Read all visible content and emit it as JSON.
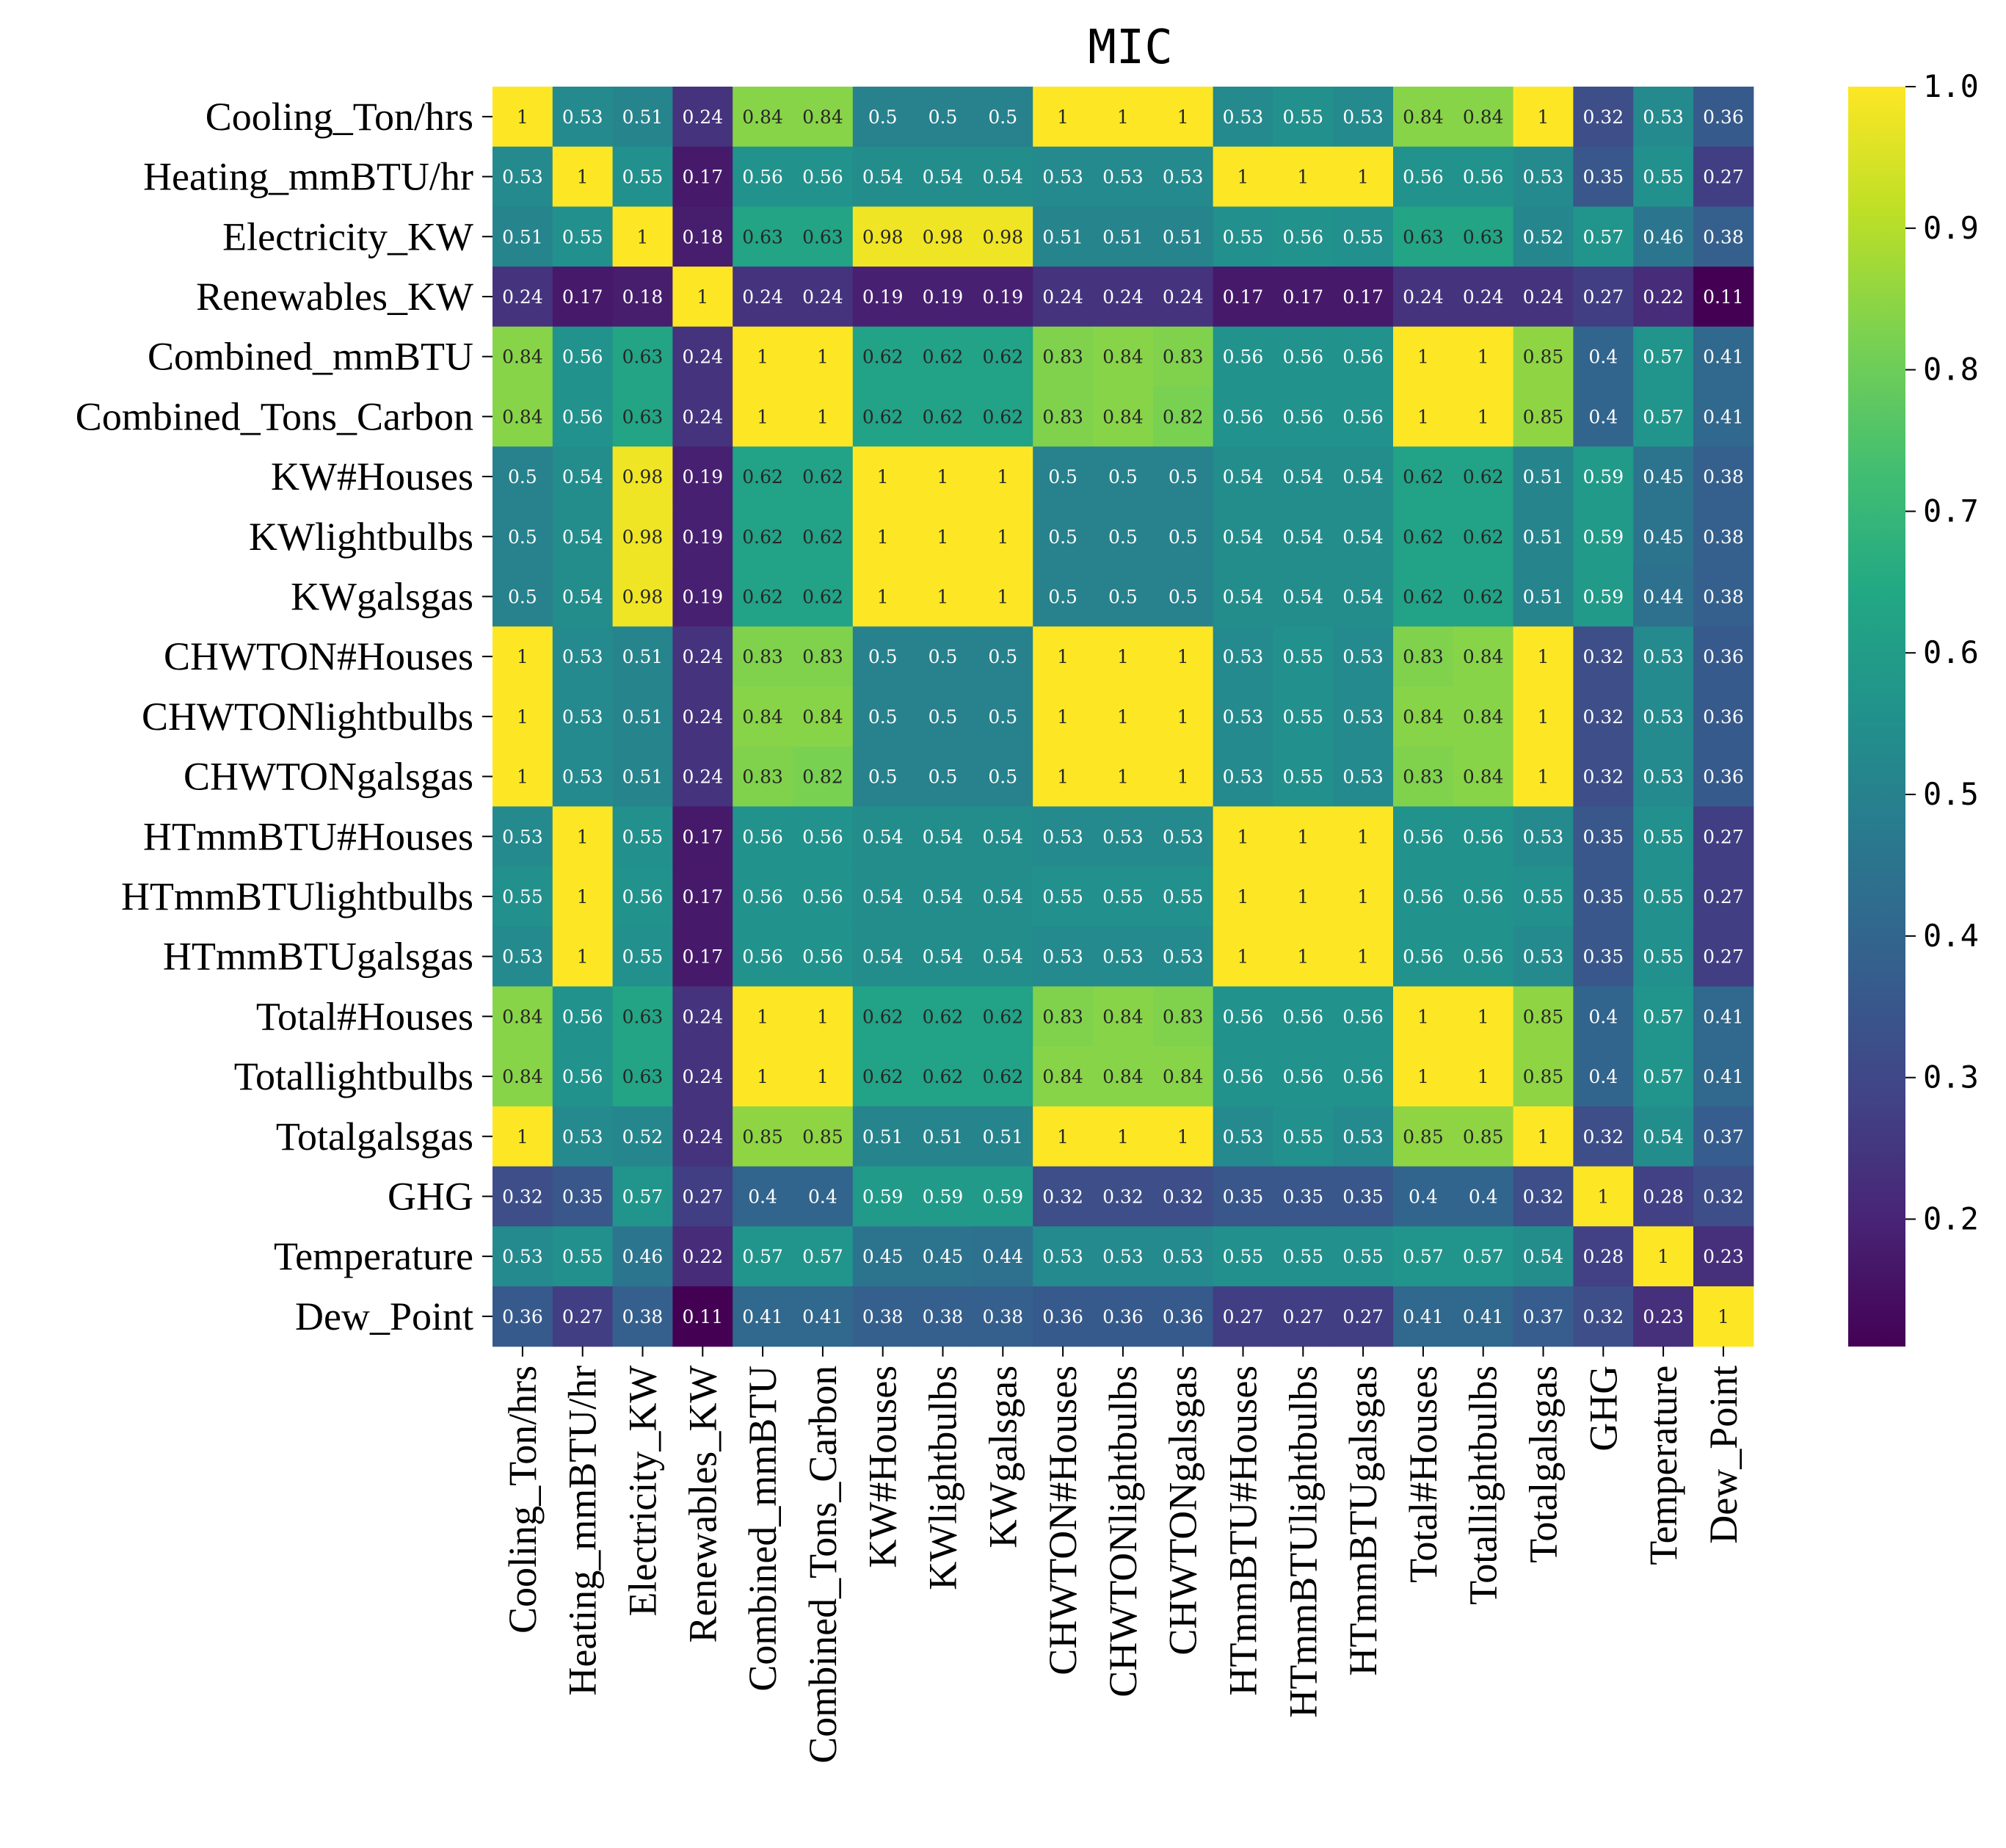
{
  "chart_data": {
    "type": "heatmap",
    "title": "MIC",
    "labels": [
      "Cooling_Ton/hrs",
      "Heating_mmBTU/hr",
      "Electricity_KW",
      "Renewables_KW",
      "Combined_mmBTU",
      "Combined_Tons_Carbon",
      "KW#Houses",
      "KWlightbulbs",
      "KWgalsgas",
      "CHWTON#Houses",
      "CHWTONlightbulbs",
      "CHWTONgalsgas",
      "HTmmBTU#Houses",
      "HTmmBTUlightbulbs",
      "HTmmBTUgalsgas",
      "Total#Houses",
      "Totallightbulbs",
      "Totalgalsgas",
      "GHG",
      "Temperature",
      "Dew_Point"
    ],
    "values": [
      [
        1,
        0.53,
        0.51,
        0.24,
        0.84,
        0.84,
        0.5,
        0.5,
        0.5,
        1,
        1,
        1,
        0.53,
        0.55,
        0.53,
        0.84,
        0.84,
        1,
        0.32,
        0.53,
        0.36
      ],
      [
        0.53,
        1,
        0.55,
        0.17,
        0.56,
        0.56,
        0.54,
        0.54,
        0.54,
        0.53,
        0.53,
        0.53,
        1,
        1,
        1,
        0.56,
        0.56,
        0.53,
        0.35,
        0.55,
        0.27
      ],
      [
        0.51,
        0.55,
        1,
        0.18,
        0.63,
        0.63,
        0.98,
        0.98,
        0.98,
        0.51,
        0.51,
        0.51,
        0.55,
        0.56,
        0.55,
        0.63,
        0.63,
        0.52,
        0.57,
        0.46,
        0.38
      ],
      [
        0.24,
        0.17,
        0.18,
        1,
        0.24,
        0.24,
        0.19,
        0.19,
        0.19,
        0.24,
        0.24,
        0.24,
        0.17,
        0.17,
        0.17,
        0.24,
        0.24,
        0.24,
        0.27,
        0.22,
        0.11
      ],
      [
        0.84,
        0.56,
        0.63,
        0.24,
        1,
        1,
        0.62,
        0.62,
        0.62,
        0.83,
        0.84,
        0.83,
        0.56,
        0.56,
        0.56,
        1,
        1,
        0.85,
        0.4,
        0.57,
        0.41
      ],
      [
        0.84,
        0.56,
        0.63,
        0.24,
        1,
        1,
        0.62,
        0.62,
        0.62,
        0.83,
        0.84,
        0.82,
        0.56,
        0.56,
        0.56,
        1,
        1,
        0.85,
        0.4,
        0.57,
        0.41
      ],
      [
        0.5,
        0.54,
        0.98,
        0.19,
        0.62,
        0.62,
        1,
        1,
        1,
        0.5,
        0.5,
        0.5,
        0.54,
        0.54,
        0.54,
        0.62,
        0.62,
        0.51,
        0.59,
        0.45,
        0.38
      ],
      [
        0.5,
        0.54,
        0.98,
        0.19,
        0.62,
        0.62,
        1,
        1,
        1,
        0.5,
        0.5,
        0.5,
        0.54,
        0.54,
        0.54,
        0.62,
        0.62,
        0.51,
        0.59,
        0.45,
        0.38
      ],
      [
        0.5,
        0.54,
        0.98,
        0.19,
        0.62,
        0.62,
        1,
        1,
        1,
        0.5,
        0.5,
        0.5,
        0.54,
        0.54,
        0.54,
        0.62,
        0.62,
        0.51,
        0.59,
        0.44,
        0.38
      ],
      [
        1,
        0.53,
        0.51,
        0.24,
        0.83,
        0.83,
        0.5,
        0.5,
        0.5,
        1,
        1,
        1,
        0.53,
        0.55,
        0.53,
        0.83,
        0.84,
        1,
        0.32,
        0.53,
        0.36
      ],
      [
        1,
        0.53,
        0.51,
        0.24,
        0.84,
        0.84,
        0.5,
        0.5,
        0.5,
        1,
        1,
        1,
        0.53,
        0.55,
        0.53,
        0.84,
        0.84,
        1,
        0.32,
        0.53,
        0.36
      ],
      [
        1,
        0.53,
        0.51,
        0.24,
        0.83,
        0.82,
        0.5,
        0.5,
        0.5,
        1,
        1,
        1,
        0.53,
        0.55,
        0.53,
        0.83,
        0.84,
        1,
        0.32,
        0.53,
        0.36
      ],
      [
        0.53,
        1,
        0.55,
        0.17,
        0.56,
        0.56,
        0.54,
        0.54,
        0.54,
        0.53,
        0.53,
        0.53,
        1,
        1,
        1,
        0.56,
        0.56,
        0.53,
        0.35,
        0.55,
        0.27
      ],
      [
        0.55,
        1,
        0.56,
        0.17,
        0.56,
        0.56,
        0.54,
        0.54,
        0.54,
        0.55,
        0.55,
        0.55,
        1,
        1,
        1,
        0.56,
        0.56,
        0.55,
        0.35,
        0.55,
        0.27
      ],
      [
        0.53,
        1,
        0.55,
        0.17,
        0.56,
        0.56,
        0.54,
        0.54,
        0.54,
        0.53,
        0.53,
        0.53,
        1,
        1,
        1,
        0.56,
        0.56,
        0.53,
        0.35,
        0.55,
        0.27
      ],
      [
        0.84,
        0.56,
        0.63,
        0.24,
        1,
        1,
        0.62,
        0.62,
        0.62,
        0.83,
        0.84,
        0.83,
        0.56,
        0.56,
        0.56,
        1,
        1,
        0.85,
        0.4,
        0.57,
        0.41
      ],
      [
        0.84,
        0.56,
        0.63,
        0.24,
        1,
        1,
        0.62,
        0.62,
        0.62,
        0.84,
        0.84,
        0.84,
        0.56,
        0.56,
        0.56,
        1,
        1,
        0.85,
        0.4,
        0.57,
        0.41
      ],
      [
        1,
        0.53,
        0.52,
        0.24,
        0.85,
        0.85,
        0.51,
        0.51,
        0.51,
        1,
        1,
        1,
        0.53,
        0.55,
        0.53,
        0.85,
        0.85,
        1,
        0.32,
        0.54,
        0.37
      ],
      [
        0.32,
        0.35,
        0.57,
        0.27,
        0.4,
        0.4,
        0.59,
        0.59,
        0.59,
        0.32,
        0.32,
        0.32,
        0.35,
        0.35,
        0.35,
        0.4,
        0.4,
        0.32,
        1,
        0.28,
        0.32
      ],
      [
        0.53,
        0.55,
        0.46,
        0.22,
        0.57,
        0.57,
        0.45,
        0.45,
        0.44,
        0.53,
        0.53,
        0.53,
        0.55,
        0.55,
        0.55,
        0.57,
        0.57,
        0.54,
        0.28,
        1,
        0.23
      ],
      [
        0.36,
        0.27,
        0.38,
        0.11,
        0.41,
        0.41,
        0.38,
        0.38,
        0.38,
        0.36,
        0.36,
        0.36,
        0.27,
        0.27,
        0.27,
        0.41,
        0.41,
        0.37,
        0.32,
        0.23,
        1
      ]
    ],
    "colormap": "viridis",
    "vmin": 0.11,
    "vmax": 1.0,
    "colorbar_ticks": [
      "0.2",
      "0.3",
      "0.4",
      "0.5",
      "0.6",
      "0.7",
      "0.8",
      "0.9",
      "1.0"
    ]
  }
}
